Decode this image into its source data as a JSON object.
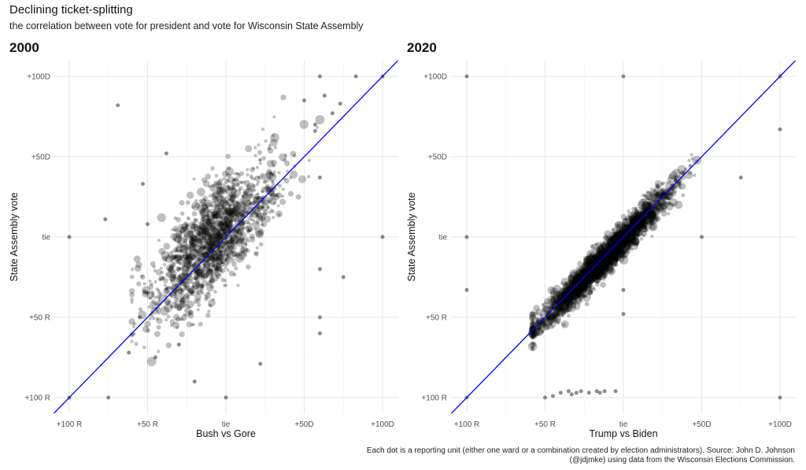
{
  "title": "Declining ticket-splitting",
  "subtitle": "the correlation between vote for president and vote for Wisconsin State Assembly",
  "caption": "Each dot is a reporting unit (either one ward or a combination created by election administrators). Source: John D. Johnson (@jdjmke) using data from the Wisconsin Elections Commission.",
  "chart_data": [
    {
      "type": "scatter",
      "title": "2000",
      "xlabel": "Bush vs Gore",
      "ylabel": "State Assembly vote",
      "xlim": [
        -100,
        100
      ],
      "ylim": [
        -100,
        100
      ],
      "xticks": [
        -100,
        -50,
        0,
        50,
        100
      ],
      "yticks": [
        -100,
        -50,
        0,
        50,
        100
      ],
      "xtick_labels": [
        "+100 R",
        "+50 R",
        "tie",
        "+50D",
        "+100D"
      ],
      "ytick_labels": [
        "+100 R",
        "+50 R",
        "tie",
        "+50D",
        "+100D"
      ],
      "grid": true,
      "reference_line": {
        "slope": 1,
        "intercept": 0,
        "color": "#0000ee"
      },
      "point_color": "#000000",
      "point_alpha": 0.25,
      "cloud": {
        "n": 1400,
        "x_mean": -8,
        "x_sd": 20,
        "slope": 0.85,
        "intercept": 4,
        "resid_sd": 16,
        "x_range": [
          -60,
          60
        ]
      },
      "points": [
        {
          "x": -100,
          "y": -100
        },
        {
          "x": 100,
          "y": 100
        },
        {
          "x": -100,
          "y": 0
        },
        {
          "x": 100,
          "y": 0
        },
        {
          "x": 60,
          "y": 100
        },
        {
          "x": 83,
          "y": 100
        },
        {
          "x": -69,
          "y": 82
        },
        {
          "x": -77,
          "y": 11
        },
        {
          "x": -75,
          "y": -100
        },
        {
          "x": 0,
          "y": -100
        },
        {
          "x": -20,
          "y": -90
        },
        {
          "x": 60,
          "y": 37
        },
        {
          "x": 60,
          "y": -50
        },
        {
          "x": 60,
          "y": -60
        },
        {
          "x": 75,
          "y": -25
        },
        {
          "x": 60,
          "y": -20
        },
        {
          "x": -50,
          "y": 8
        },
        {
          "x": -53,
          "y": 33
        },
        {
          "x": -38,
          "y": 52
        },
        {
          "x": 50,
          "y": 85
        },
        {
          "x": 63,
          "y": 88
        },
        {
          "x": 73,
          "y": 83
        },
        {
          "x": 68,
          "y": 77
        },
        {
          "x": 57,
          "y": 70
        },
        {
          "x": 57,
          "y": 66
        },
        {
          "x": -30,
          "y": -67
        },
        {
          "x": -55,
          "y": -50
        },
        {
          "x": -62,
          "y": -72
        },
        {
          "x": -45,
          "y": -75
        },
        {
          "x": 22,
          "y": -79
        }
      ]
    },
    {
      "type": "scatter",
      "title": "2020",
      "xlabel": "Trump vs Biden",
      "ylabel": "State Assembly vote",
      "xlim": [
        -100,
        100
      ],
      "ylim": [
        -100,
        100
      ],
      "xticks": [
        -100,
        -50,
        0,
        50,
        100
      ],
      "yticks": [
        -100,
        -50,
        0,
        50,
        100
      ],
      "xtick_labels": [
        "+100 R",
        "+50 R",
        "tie",
        "+50D",
        "+100D"
      ],
      "ytick_labels": [
        "+100 R",
        "+50 R",
        "tie",
        "+50D",
        "+100D"
      ],
      "grid": true,
      "reference_line": {
        "slope": 1,
        "intercept": 0,
        "color": "#0000ee"
      },
      "point_color": "#000000",
      "point_alpha": 0.25,
      "cloud": {
        "n": 2800,
        "x_mean": -12,
        "x_sd": 20,
        "slope": 1.0,
        "intercept": -1,
        "resid_sd": 5,
        "x_range": [
          -58,
          97
        ]
      },
      "points": [
        {
          "x": -100,
          "y": -100
        },
        {
          "x": 100,
          "y": 100
        },
        {
          "x": -100,
          "y": 100
        },
        {
          "x": 0,
          "y": 100
        },
        {
          "x": -100,
          "y": 0
        },
        {
          "x": 50,
          "y": 0
        },
        {
          "x": -100,
          "y": -33
        },
        {
          "x": 0,
          "y": -33
        },
        {
          "x": 0,
          "y": -48
        },
        {
          "x": 100,
          "y": 67
        },
        {
          "x": 100,
          "y": -100
        },
        {
          "x": 75,
          "y": 37
        },
        {
          "x": -40,
          "y": -97
        },
        {
          "x": -35,
          "y": -96
        },
        {
          "x": -30,
          "y": -97
        },
        {
          "x": -27,
          "y": -96
        },
        {
          "x": -22,
          "y": -97
        },
        {
          "x": -17,
          "y": -96
        },
        {
          "x": -12,
          "y": -96
        },
        {
          "x": -5,
          "y": -96
        },
        {
          "x": -45,
          "y": -99
        },
        {
          "x": -50,
          "y": -100
        },
        {
          "x": -33,
          "y": -98
        },
        {
          "x": -15,
          "y": -97
        }
      ]
    }
  ]
}
